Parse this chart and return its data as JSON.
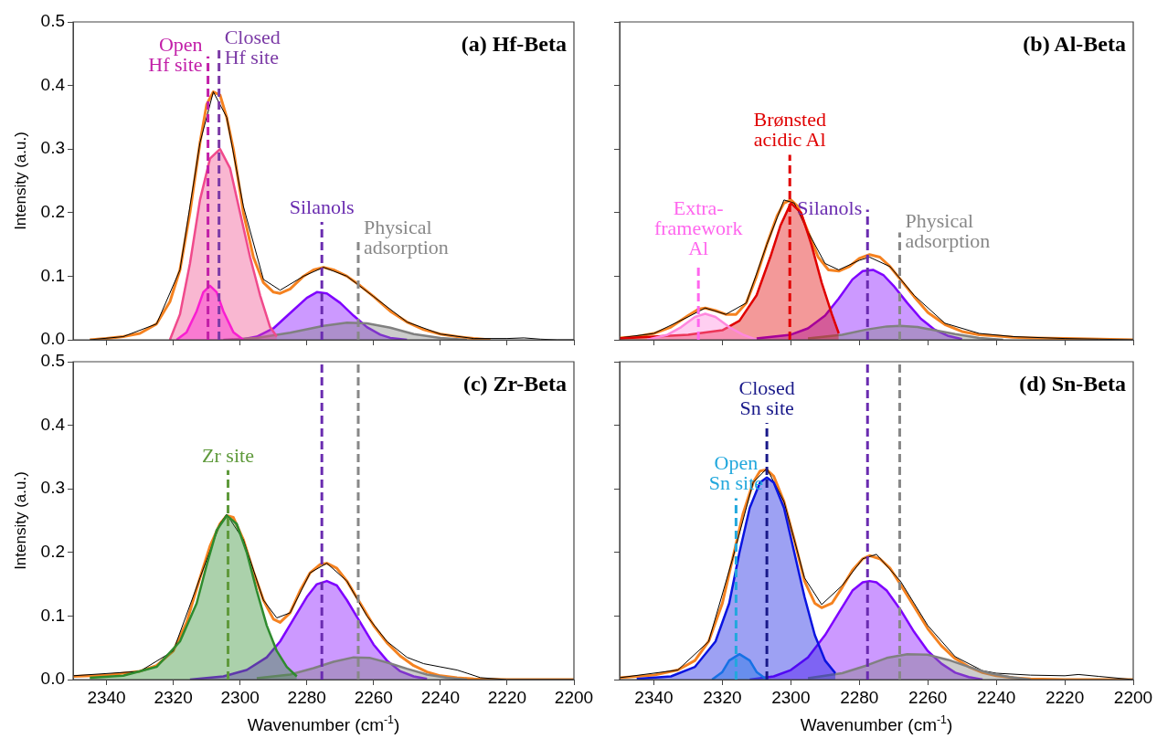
{
  "chart_data": [
    {
      "type": "line",
      "title": "(a) Hf-Beta",
      "ylabel": "Intensity (a.u.)",
      "xlim": [
        2350,
        2200
      ],
      "xticks": [
        2340,
        2320,
        2300,
        2280,
        2260,
        2240,
        2220,
        2200
      ],
      "ylim": [
        0,
        0.5
      ],
      "yticks": [
        {
          "value": 0,
          "label": "0.0"
        },
        0.1,
        0.2,
        0.3,
        0.4,
        0.5
      ],
      "tick_labels": "y",
      "legend": false,
      "marker": "none",
      "series": [
        {
          "type": "area",
          "color": "#f04a8c",
          "x": [
            2321,
            2318,
            2315,
            2312,
            2309,
            2306,
            2303,
            2300,
            2297,
            2294,
            2291,
            2289
          ],
          "values": [
            0,
            0.04,
            0.12,
            0.22,
            0.285,
            0.3,
            0.27,
            0.2,
            0.13,
            0.07,
            0.02,
            0.005
          ]
        },
        {
          "type": "area",
          "color": "#ff00ff",
          "x": [
            2319,
            2316,
            2313,
            2311,
            2309,
            2307,
            2305,
            2302,
            2299
          ],
          "values": [
            0,
            0.012,
            0.045,
            0.075,
            0.085,
            0.075,
            0.045,
            0.012,
            0
          ]
        },
        {
          "type": "area",
          "color": "#808080",
          "x": [
            2305,
            2295,
            2285,
            2275,
            2268,
            2262,
            2255,
            2248,
            2240,
            2232
          ],
          "values": [
            0,
            0.003,
            0.011,
            0.022,
            0.027,
            0.026,
            0.019,
            0.009,
            0.003,
            0
          ]
        },
        {
          "type": "area",
          "color": "#7f00ff",
          "x": [
            2300,
            2295,
            2290,
            2285,
            2280,
            2277,
            2274,
            2270,
            2266,
            2262,
            2258,
            2255,
            2250
          ],
          "values": [
            0,
            0.005,
            0.018,
            0.042,
            0.066,
            0.075,
            0.073,
            0.058,
            0.038,
            0.02,
            0.008,
            0.003,
            0
          ]
        },
        {
          "type": "line",
          "color": "#000000",
          "x": [
            2345,
            2335,
            2325,
            2318,
            2312,
            2308,
            2304,
            2299,
            2293,
            2288,
            2281,
            2275,
            2268,
            2260,
            2250,
            2240,
            2230,
            2220,
            2215,
            2210,
            2205,
            2200
          ],
          "values": [
            0,
            0.005,
            0.025,
            0.11,
            0.31,
            0.39,
            0.35,
            0.21,
            0.095,
            0.078,
            0.1,
            0.114,
            0.1,
            0.068,
            0.028,
            0.009,
            0.002,
            0.002,
            0.003,
            0.001,
            0,
            0
          ]
        },
        {
          "type": "line",
          "color": "#f58220",
          "x": [
            2345,
            2340,
            2335,
            2330,
            2325,
            2321,
            2318,
            2315,
            2312,
            2310,
            2308,
            2306,
            2304,
            2302,
            2299,
            2296,
            2293,
            2290,
            2288,
            2285,
            2281,
            2278,
            2275,
            2272,
            2268,
            2264,
            2260,
            2255,
            2250,
            2245,
            2240,
            2235,
            2230,
            2225
          ],
          "values": [
            0,
            0.002,
            0.005,
            0.01,
            0.025,
            0.06,
            0.11,
            0.2,
            0.31,
            0.37,
            0.39,
            0.385,
            0.35,
            0.3,
            0.2,
            0.13,
            0.09,
            0.075,
            0.073,
            0.08,
            0.1,
            0.11,
            0.114,
            0.11,
            0.1,
            0.085,
            0.068,
            0.045,
            0.028,
            0.016,
            0.009,
            0.005,
            0.002,
            0
          ]
        }
      ],
      "ref_lines": [
        {
          "axis": "x",
          "value": 2309.6,
          "label": "Open\nHf site",
          "color": "#c21fa8",
          "line_style": "dashed"
        },
        {
          "axis": "x",
          "value": 2306.3,
          "label": "Closed\nHf site",
          "color": "#7b3aa6",
          "line_style": "dashed"
        },
        {
          "axis": "x",
          "value": 2275.5,
          "label": "Silanols",
          "color": "#6a2cb0",
          "line_style": "dashed"
        },
        {
          "axis": "x",
          "value": 2264.6,
          "label": "Physical\nadsorption",
          "color": "#888888",
          "line_style": "dashed"
        }
      ]
    },
    {
      "type": "line",
      "title": "(b) Al-Beta",
      "xlim": [
        2350,
        2200
      ],
      "xticks": [
        2340,
        2320,
        2300,
        2280,
        2260,
        2240,
        2220,
        2200
      ],
      "ylim": [
        0,
        0.5
      ],
      "yticks": [
        0,
        0.1,
        0.2,
        0.3,
        0.4,
        0.5
      ],
      "tick_labels": false,
      "legend": false,
      "marker": "none",
      "series": [
        {
          "type": "area",
          "color": "#ff88dd",
          "x": [
            2342,
            2336,
            2332,
            2328,
            2325,
            2322,
            2318,
            2314,
            2310
          ],
          "values": [
            0,
            0.008,
            0.02,
            0.036,
            0.041,
            0.036,
            0.02,
            0.008,
            0
          ]
        },
        {
          "type": "area",
          "color": "#e00000",
          "x": [
            2350,
            2340,
            2330,
            2320,
            2315,
            2310,
            2306,
            2303,
            2300,
            2297,
            2294,
            2291,
            2288,
            2286
          ],
          "values": [
            0.002,
            0.005,
            0.008,
            0.015,
            0.03,
            0.07,
            0.13,
            0.18,
            0.215,
            0.2,
            0.15,
            0.09,
            0.04,
            0.01
          ]
        },
        {
          "type": "area",
          "color": "#808080",
          "x": [
            2295,
            2285,
            2278,
            2272,
            2268,
            2263,
            2258,
            2252,
            2245,
            2238
          ],
          "values": [
            0.002,
            0.008,
            0.016,
            0.021,
            0.022,
            0.02,
            0.015,
            0.009,
            0.003,
            0
          ]
        },
        {
          "type": "area",
          "color": "#7f00ff",
          "x": [
            2310,
            2300,
            2295,
            2290,
            2286,
            2282,
            2279,
            2276,
            2273,
            2270,
            2266,
            2262,
            2258,
            2254,
            2250
          ],
          "values": [
            0.002,
            0.008,
            0.018,
            0.038,
            0.065,
            0.095,
            0.108,
            0.11,
            0.102,
            0.085,
            0.058,
            0.033,
            0.016,
            0.006,
            0.001
          ]
        },
        {
          "type": "line",
          "color": "#000000",
          "x": [
            2350,
            2340,
            2330,
            2325,
            2319,
            2313,
            2307,
            2302,
            2299,
            2295,
            2290,
            2286,
            2280,
            2277,
            2271,
            2264,
            2255,
            2245,
            2235,
            2220,
            2210,
            2200
          ],
          "values": [
            0.003,
            0.01,
            0.036,
            0.05,
            0.04,
            0.058,
            0.15,
            0.22,
            0.215,
            0.17,
            0.12,
            0.11,
            0.125,
            0.13,
            0.115,
            0.07,
            0.026,
            0.01,
            0.005,
            0.002,
            0.001,
            0
          ]
        },
        {
          "type": "line",
          "color": "#f58220",
          "x": [
            2350,
            2345,
            2340,
            2335,
            2330,
            2327,
            2325,
            2322,
            2319,
            2316,
            2313,
            2310,
            2307,
            2304,
            2302,
            2300,
            2298,
            2295,
            2292,
            2289,
            2286,
            2283,
            2280,
            2277,
            2274,
            2271,
            2268,
            2264,
            2260,
            2255,
            2250,
            2245,
            2240,
            2235,
            2230,
            2220,
            2210,
            2200
          ],
          "values": [
            0.003,
            0.005,
            0.01,
            0.02,
            0.038,
            0.048,
            0.05,
            0.046,
            0.04,
            0.04,
            0.058,
            0.1,
            0.15,
            0.195,
            0.215,
            0.22,
            0.21,
            0.17,
            0.13,
            0.11,
            0.108,
            0.115,
            0.128,
            0.134,
            0.13,
            0.115,
            0.095,
            0.068,
            0.043,
            0.024,
            0.013,
            0.008,
            0.006,
            0.004,
            0.003,
            0.002,
            0.001,
            0
          ]
        }
      ],
      "ref_lines": [
        {
          "axis": "x",
          "value": 2327,
          "label": "Extra-\nframework\nAl",
          "color": "#ff66ee",
          "line_style": "dashed"
        },
        {
          "axis": "x",
          "value": 2300.3,
          "label": "Brønsted\nacidic Al",
          "color": "#e00000",
          "line_style": "dashed"
        },
        {
          "axis": "x",
          "value": 2277.6,
          "label": "Silanols",
          "color": "#6a2cb0",
          "line_style": "dashed"
        },
        {
          "axis": "x",
          "value": 2268.2,
          "label": "Physical\nadsorption",
          "color": "#888888",
          "line_style": "dashed"
        }
      ]
    },
    {
      "type": "line",
      "title": "(c) Zr-Beta",
      "xlabel": "Wavenumber (cm$^{-1}$)",
      "ylabel": "Intensity (a.u.)",
      "xlim": [
        2350,
        2200
      ],
      "xticks": [
        2340,
        2320,
        2300,
        2280,
        2260,
        2240,
        2220,
        2200
      ],
      "ylim": [
        0,
        0.5
      ],
      "yticks": [
        {
          "value": 0,
          "label": "0.0"
        },
        0.1,
        0.2,
        0.3,
        0.4,
        0.5
      ],
      "legend": false,
      "marker": "none",
      "series": [
        {
          "type": "area",
          "color": "#2e8b2e",
          "x": [
            2345,
            2335,
            2325,
            2318,
            2313,
            2310,
            2307,
            2304,
            2301,
            2298,
            2295,
            2292,
            2289,
            2286,
            2283
          ],
          "values": [
            0.003,
            0.006,
            0.02,
            0.06,
            0.12,
            0.18,
            0.235,
            0.258,
            0.245,
            0.2,
            0.14,
            0.085,
            0.045,
            0.02,
            0.005
          ]
        },
        {
          "type": "area",
          "color": "#808080",
          "x": [
            2295,
            2285,
            2278,
            2272,
            2266,
            2261,
            2256,
            2250,
            2244,
            2238,
            2232
          ],
          "values": [
            0.002,
            0.008,
            0.018,
            0.028,
            0.035,
            0.034,
            0.027,
            0.017,
            0.008,
            0.003,
            0
          ]
        },
        {
          "type": "area",
          "color": "#7f00ff",
          "x": [
            2315,
            2305,
            2298,
            2292,
            2288,
            2284,
            2280,
            2277,
            2274,
            2271,
            2268,
            2264,
            2260,
            2256,
            2252,
            2248,
            2244
          ],
          "values": [
            0,
            0.005,
            0.015,
            0.035,
            0.06,
            0.095,
            0.13,
            0.15,
            0.155,
            0.148,
            0.125,
            0.09,
            0.055,
            0.03,
            0.013,
            0.005,
            0.001
          ]
        },
        {
          "type": "line",
          "color": "#000000",
          "x": [
            2350,
            2330,
            2320,
            2312,
            2306,
            2304,
            2299,
            2293,
            2289,
            2285,
            2279,
            2274,
            2268,
            2262,
            2256,
            2250,
            2245,
            2240,
            2235,
            2232,
            2228,
            2220,
            2200
          ],
          "values": [
            0.006,
            0.013,
            0.045,
            0.16,
            0.245,
            0.26,
            0.22,
            0.125,
            0.097,
            0.105,
            0.168,
            0.183,
            0.155,
            0.1,
            0.06,
            0.035,
            0.025,
            0.02,
            0.015,
            0.01,
            0.003,
            0,
            0
          ]
        },
        {
          "type": "line",
          "color": "#f58220",
          "x": [
            2350,
            2340,
            2330,
            2325,
            2320,
            2316,
            2312,
            2309,
            2306,
            2304,
            2302,
            2299,
            2296,
            2293,
            2290,
            2288,
            2285,
            2282,
            2279,
            2276,
            2274,
            2271,
            2268,
            2264,
            2260,
            2256,
            2252,
            2248,
            2244,
            2240,
            2235,
            2230,
            2220,
            2210,
            2200
          ],
          "values": [
            0.005,
            0.007,
            0.013,
            0.022,
            0.045,
            0.09,
            0.16,
            0.21,
            0.245,
            0.258,
            0.255,
            0.22,
            0.17,
            0.125,
            0.095,
            0.09,
            0.105,
            0.14,
            0.168,
            0.181,
            0.183,
            0.175,
            0.155,
            0.12,
            0.085,
            0.058,
            0.037,
            0.022,
            0.012,
            0.006,
            0.003,
            0.001,
            0,
            0,
            0
          ]
        }
      ],
      "ref_lines": [
        {
          "axis": "x",
          "value": 2303.6,
          "label": "Zr site",
          "color": "#5f9a3c",
          "line_style": "dashed"
        },
        {
          "axis": "x",
          "value": 2275.5,
          "color": "#6a2cb0",
          "line_style": "dashed"
        },
        {
          "axis": "x",
          "value": 2264.6,
          "color": "#888888",
          "line_style": "dashed"
        }
      ]
    },
    {
      "type": "line",
      "title": "(d) Sn-Beta",
      "xlabel": "Wavenumber (cm$^{-1}$)",
      "xlim": [
        2350,
        2200
      ],
      "xticks": [
        2340,
        2320,
        2300,
        2280,
        2260,
        2240,
        2220,
        2200
      ],
      "ylim": [
        0,
        0.5
      ],
      "yticks": [
        0,
        0.1,
        0.2,
        0.3,
        0.4,
        0.5
      ],
      "tick_labels": "x",
      "legend": false,
      "marker": "none",
      "series": [
        {
          "type": "area",
          "color": "#0a14e0",
          "x": [
            2345,
            2335,
            2328,
            2322,
            2318,
            2315,
            2312,
            2309,
            2307,
            2305,
            2302,
            2299,
            2296,
            2293,
            2290,
            2287
          ],
          "values": [
            0.001,
            0.005,
            0.02,
            0.06,
            0.12,
            0.2,
            0.27,
            0.31,
            0.318,
            0.31,
            0.27,
            0.2,
            0.13,
            0.07,
            0.03,
            0.01
          ]
        },
        {
          "type": "area",
          "color": "#1fb0e8",
          "x": [
            2323,
            2320,
            2318,
            2315,
            2312,
            2310,
            2307
          ],
          "values": [
            0,
            0.012,
            0.03,
            0.04,
            0.03,
            0.012,
            0
          ]
        },
        {
          "type": "area",
          "color": "#808080",
          "x": [
            2295,
            2285,
            2278,
            2272,
            2266,
            2260,
            2254,
            2248,
            2242,
            2236,
            2230
          ],
          "values": [
            0.002,
            0.01,
            0.022,
            0.034,
            0.04,
            0.039,
            0.031,
            0.02,
            0.01,
            0.004,
            0
          ]
        },
        {
          "type": "area",
          "color": "#7f00ff",
          "x": [
            2312,
            2305,
            2300,
            2295,
            2290,
            2286,
            2282,
            2279,
            2277,
            2275,
            2272,
            2268,
            2264,
            2260,
            2256,
            2252,
            2248,
            2244
          ],
          "values": [
            0,
            0.005,
            0.015,
            0.035,
            0.07,
            0.105,
            0.14,
            0.153,
            0.155,
            0.153,
            0.14,
            0.11,
            0.075,
            0.045,
            0.025,
            0.011,
            0.004,
            0
          ]
        },
        {
          "type": "line",
          "color": "#000000",
          "x": [
            2350,
            2333,
            2324,
            2317,
            2311,
            2307,
            2302,
            2296,
            2291,
            2285,
            2279,
            2275,
            2268,
            2260,
            2252,
            2244,
            2240,
            2230,
            2220,
            2216,
            2210,
            2200
          ],
          "values": [
            0.003,
            0.015,
            0.06,
            0.19,
            0.31,
            0.332,
            0.28,
            0.16,
            0.118,
            0.148,
            0.19,
            0.197,
            0.155,
            0.085,
            0.036,
            0.014,
            0.01,
            0.007,
            0.006,
            0.008,
            0.005,
            0
          ]
        },
        {
          "type": "line",
          "color": "#f58220",
          "x": [
            2350,
            2340,
            2333,
            2328,
            2324,
            2320,
            2317,
            2314,
            2311,
            2309,
            2307,
            2305,
            2302,
            2299,
            2296,
            2293,
            2291,
            2288,
            2285,
            2282,
            2279,
            2277,
            2274,
            2271,
            2268,
            2264,
            2260,
            2256,
            2252,
            2248,
            2244,
            2240,
            2235,
            2230,
            2220,
            2210,
            2200
          ],
          "values": [
            0.003,
            0.007,
            0.015,
            0.03,
            0.06,
            0.12,
            0.19,
            0.26,
            0.31,
            0.328,
            0.33,
            0.32,
            0.28,
            0.22,
            0.155,
            0.12,
            0.113,
            0.12,
            0.145,
            0.172,
            0.19,
            0.195,
            0.19,
            0.175,
            0.15,
            0.115,
            0.08,
            0.053,
            0.033,
            0.02,
            0.011,
            0.006,
            0.003,
            0.001,
            0,
            0,
            0
          ]
        }
      ],
      "ref_lines": [
        {
          "axis": "x",
          "value": 2316,
          "label": "Open\nSn site",
          "color": "#22a8dd",
          "line_style": "dashed"
        },
        {
          "axis": "x",
          "value": 2307,
          "label": "Closed\nSn site",
          "color": "#1a1a8a",
          "line_style": "dashed"
        },
        {
          "axis": "x",
          "value": 2277.6,
          "color": "#6a2cb0",
          "line_style": "dashed"
        },
        {
          "axis": "x",
          "value": 2268.2,
          "color": "#888888",
          "line_style": "dashed"
        }
      ]
    }
  ]
}
